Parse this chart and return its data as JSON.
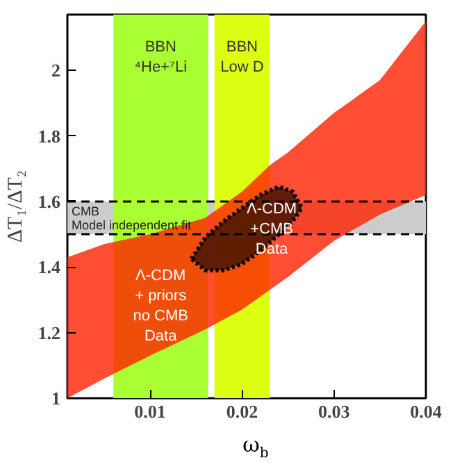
{
  "chart_data": {
    "type": "area",
    "xlabel": "ω$_{b}$",
    "ylabel": "ΔT₁/ΔT₂",
    "xlim": [
      0.001,
      0.04
    ],
    "ylim": [
      1,
      2.17
    ],
    "xticks": [
      {
        "value": 0.01,
        "label": "0.01"
      },
      {
        "value": 0.02,
        "label": "0.02"
      },
      {
        "value": 0.03,
        "label": "0.03"
      },
      {
        "value": 0.04,
        "label": "0.04"
      }
    ],
    "yticks": [
      1,
      1.2,
      1.4,
      1.6,
      1.8,
      2
    ],
    "grid": false,
    "bands": [
      {
        "axis": "y",
        "from": 1.5,
        "to": 1.6,
        "label": "CMB\nModel independent fit",
        "color": "#cccccc"
      },
      {
        "axis": "x",
        "from": 0.006,
        "to": 0.0163,
        "label": "BBN\n⁴He+⁷Li",
        "color": "#aaff33"
      },
      {
        "axis": "x",
        "from": 0.017,
        "to": 0.023,
        "label": "BBN\nLow D",
        "color": "#ddff11"
      }
    ],
    "ref_lines": [
      {
        "axis": "y",
        "value": 1.5,
        "line_style": "dashed",
        "color": "#000000"
      },
      {
        "axis": "y",
        "value": 1.6,
        "line_style": "dashed",
        "color": "#000000"
      }
    ],
    "series": [
      {
        "color": "#ff2200",
        "x": [
          0.001,
          0.005,
          0.01,
          0.016,
          0.02,
          0.023,
          0.025,
          0.03,
          0.035,
          0.04,
          0.04,
          0.035,
          0.03,
          0.025,
          0.023,
          0.02,
          0.016,
          0.01,
          0.005,
          0.001
        ],
        "values": [
          1.43,
          1.47,
          1.5,
          1.55,
          1.63,
          1.71,
          1.75,
          1.87,
          1.97,
          2.15,
          1.62,
          1.56,
          1.48,
          1.37,
          1.33,
          1.27,
          1.21,
          1.13,
          1.06,
          1.0
        ]
      },
      {
        "color": "#3a1200",
        "line_style": "dotted",
        "x": [
          0.0145,
          0.016,
          0.018,
          0.02,
          0.022,
          0.024,
          0.0255,
          0.0265,
          0.0255,
          0.024,
          0.022,
          0.02,
          0.018,
          0.016
        ],
        "values": [
          1.425,
          1.49,
          1.54,
          1.58,
          1.62,
          1.645,
          1.63,
          1.58,
          1.54,
          1.5,
          1.45,
          1.41,
          1.39,
          1.39
        ]
      }
    ],
    "annotations": [
      "Λ-CDM\n+ priors\nno CMB\nData",
      "Λ-CDM\n+CMB\nData"
    ]
  }
}
